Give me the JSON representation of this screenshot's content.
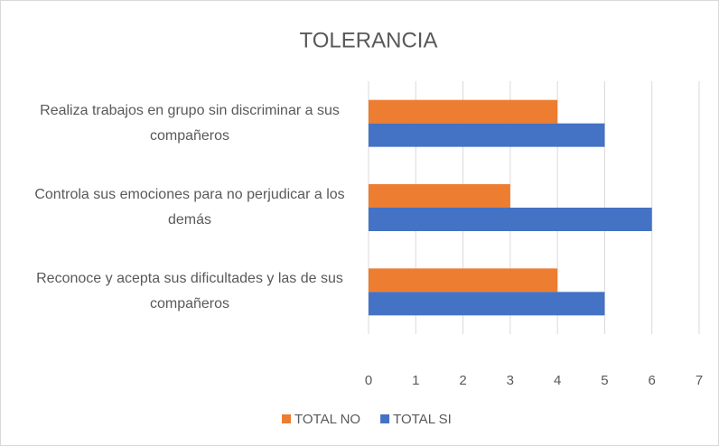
{
  "chart_data": {
    "type": "hbar",
    "title": "TOLERANCIA",
    "categories": [
      "Realiza trabajos en grupo sin discriminar a sus compañeros",
      "Controla sus emociones para no perjudicar a los demás",
      "Reconoce y acepta sus dificultades y las de sus compañeros"
    ],
    "series": [
      {
        "name": "TOTAL NO",
        "color": "#ed7d31",
        "values": [
          4,
          3,
          4
        ]
      },
      {
        "name": "TOTAL SI",
        "color": "#4472c4",
        "values": [
          5,
          6,
          5
        ]
      }
    ],
    "xlim": [
      0,
      7
    ],
    "xticks": [
      0,
      1,
      2,
      3,
      4,
      5,
      6,
      7
    ],
    "grid": true,
    "legend": "bottom"
  }
}
